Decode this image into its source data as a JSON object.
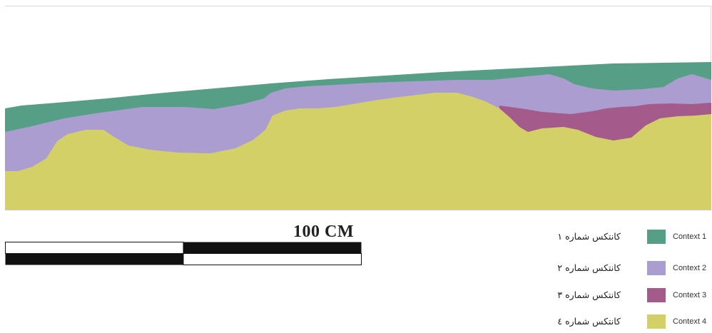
{
  "scale": {
    "label": "100 CM"
  },
  "legend": {
    "items": [
      {
        "en": "Context 1",
        "fa": "کانتکس شماره ۱",
        "color": "#569f86"
      },
      {
        "en": "Context 2",
        "fa": "کانتکس شماره ۲",
        "color": "#ab9dcf"
      },
      {
        "en": "Context 3",
        "fa": "کانتکس شماره ۳",
        "color": "#a45a8b"
      },
      {
        "en": "Context 4",
        "fa": "کانتکس شماره ٤",
        "color": "#d3d068"
      }
    ]
  }
}
